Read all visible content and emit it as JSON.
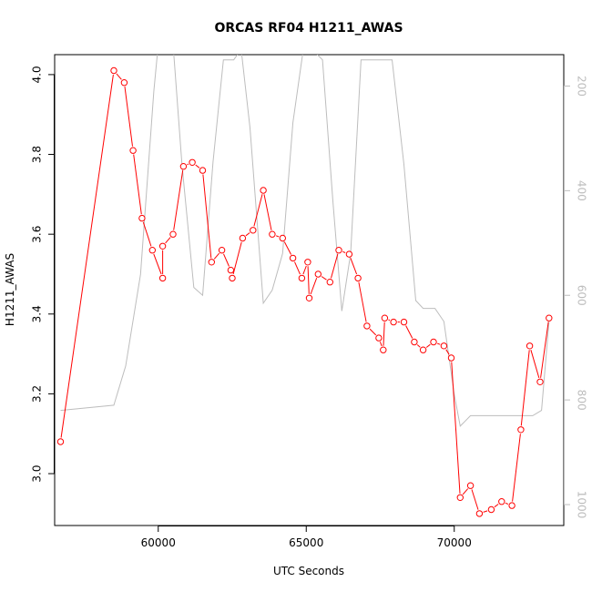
{
  "colors": {
    "primary": "#ff0000",
    "secondary": "#bdbdbd",
    "axis": "#000000"
  },
  "chart_data": {
    "type": "line",
    "title": "ORCAS RF04 H1211_AWAS",
    "xlabel": "UTC Seconds",
    "ylabel": "H1211_AWAS",
    "xlim": [
      56500,
      73700
    ],
    "ylim": [
      2.87,
      4.05
    ],
    "x_ticks": [
      60000,
      65000,
      70000
    ],
    "y_ticks": [
      3.0,
      3.2,
      3.4,
      3.6,
      3.8,
      4.0
    ],
    "y_tick_labels": [
      "3.0",
      "3.2",
      "3.4",
      "3.6",
      "3.8",
      "4.0"
    ],
    "y2_lim": [
      1040,
      140
    ],
    "y2_ticks": [
      200,
      400,
      600,
      800,
      1000
    ],
    "grid": false,
    "series": [
      {
        "color": "#ff0000",
        "markers": "open-circle",
        "x": [
          56700,
          58500,
          58850,
          59150,
          59450,
          59800,
          60150,
          60150,
          60500,
          60850,
          61150,
          61500,
          61800,
          62150,
          62450,
          62500,
          62850,
          63200,
          63550,
          63850,
          64200,
          64550,
          64850,
          65050,
          65100,
          65400,
          65800,
          66100,
          66450,
          66750,
          67050,
          67450,
          67600,
          67650,
          67950,
          68300,
          68650,
          68950,
          69300,
          69650,
          69900,
          70200,
          70550,
          70850,
          71250,
          71600,
          71950,
          72250,
          72550,
          72900,
          73200
        ],
        "y": [
          3.08,
          4.01,
          3.98,
          3.81,
          3.64,
          3.56,
          3.49,
          3.57,
          3.6,
          3.77,
          3.78,
          3.76,
          3.53,
          3.56,
          3.51,
          3.49,
          3.59,
          3.61,
          3.71,
          3.6,
          3.59,
          3.54,
          3.49,
          3.53,
          3.44,
          3.5,
          3.48,
          3.56,
          3.55,
          3.49,
          3.37,
          3.34,
          3.31,
          3.39,
          3.38,
          3.38,
          3.33,
          3.31,
          3.33,
          3.32,
          3.29,
          2.94,
          2.97,
          2.9,
          2.91,
          2.93,
          2.92,
          3.11,
          3.32,
          3.23,
          3.39
        ]
      },
      {
        "color": "#bdbdbd",
        "axis": "right",
        "x": [
          56700,
          58500,
          58900,
          59400,
          59850,
          60000,
          60200,
          60500,
          60800,
          61200,
          61500,
          61850,
          62200,
          62550,
          62800,
          63100,
          63550,
          63850,
          64200,
          64550,
          64900,
          65200,
          65550,
          65900,
          66200,
          66500,
          66850,
          67200,
          67550,
          67900,
          68300,
          68700,
          68950,
          69350,
          69650,
          70000,
          70200,
          70550,
          70900,
          71300,
          71650,
          72000,
          72350,
          72650,
          72950,
          73200
        ],
        "y": [
          820,
          810,
          735,
          560,
          210,
          120,
          120,
          120,
          350,
          585,
          600,
          345,
          150,
          150,
          130,
          280,
          615,
          590,
          520,
          270,
          130,
          130,
          150,
          420,
          630,
          520,
          150,
          150,
          150,
          150,
          350,
          610,
          625,
          625,
          650,
          790,
          850,
          830,
          830,
          830,
          830,
          830,
          830,
          830,
          820,
          650
        ]
      }
    ]
  }
}
